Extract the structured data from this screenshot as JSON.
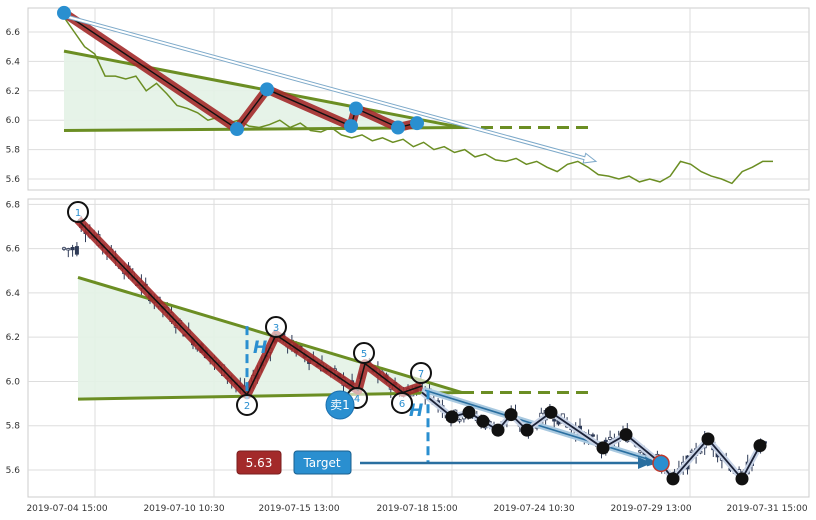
{
  "chart_data": [
    {
      "panel": "overview",
      "type": "line",
      "ylim": [
        5.55,
        6.75
      ],
      "y_ticks": [
        "6.6",
        "6.4",
        "6.2",
        "6.0",
        "5.8",
        "5.6"
      ],
      "grid": true,
      "series": [
        {
          "values": [
            6.7,
            6.6,
            6.5,
            6.45,
            6.3,
            6.3,
            6.28,
            6.3,
            6.2,
            6.25,
            6.18,
            6.1,
            6.08,
            6.05,
            6.0,
            6.02,
            5.98,
            6.0,
            5.96,
            5.95,
            5.97,
            6.0,
            5.95,
            5.98,
            5.93,
            5.92,
            5.95,
            5.9,
            5.88,
            5.9,
            5.86,
            5.88,
            5.85,
            5.87,
            5.82,
            5.85,
            5.8,
            5.82,
            5.78,
            5.8,
            5.75,
            5.77,
            5.73,
            5.72,
            5.74,
            5.7,
            5.72,
            5.68,
            5.65,
            5.7,
            5.72,
            5.68,
            5.63,
            5.62,
            5.6,
            5.62,
            5.58,
            5.6,
            5.58,
            5.62,
            5.72,
            5.7,
            5.65,
            5.62,
            5.6,
            5.57,
            5.65,
            5.68,
            5.72,
            5.72
          ]
        }
      ]
    },
    {
      "panel": "main",
      "type": "candlestick",
      "ylim": [
        5.48,
        6.82
      ],
      "y_ticks": [
        "6.8",
        "6.6",
        "6.4",
        "6.2",
        "6.0",
        "5.8",
        "5.6"
      ],
      "x_ticks": [
        "2019-07-04 15:00",
        "2019-07-10 10:30",
        "2019-07-15 13:00",
        "2019-07-18 15:00",
        "2019-07-24 10:30",
        "2019-07-29 13:00",
        "2019-07-31 15:00"
      ],
      "grid": true,
      "points": [
        {
          "label": "1",
          "price": 6.73
        },
        {
          "label": "2",
          "price": 5.94
        },
        {
          "label": "3",
          "price": 6.21
        },
        {
          "label": "4",
          "price": 5.96
        },
        {
          "label": "5",
          "price": 6.08
        },
        {
          "label": "6",
          "price": 5.95
        },
        {
          "label": "7",
          "price": 5.98
        }
      ],
      "sell_marker": "卖1",
      "breakout_price": 5.94,
      "target_price": 5.63,
      "target_price_label": "5.63",
      "target_label": "Target",
      "height_marker": "H",
      "upper_trend": [
        6.47,
        5.95
      ],
      "lower_trend": [
        5.92,
        5.95
      ],
      "projection_zigzag": [
        5.95,
        5.84,
        5.86,
        5.82,
        5.78,
        5.85,
        5.78,
        5.86,
        5.7,
        5.76,
        5.63,
        5.56,
        5.74,
        5.56,
        5.71
      ]
    }
  ],
  "colors": {
    "zigzag": "#a32a2a",
    "trend": "#6b8e23",
    "triangle_fill": "#e3f2e6",
    "accent": "#2a8fd0",
    "candle_up": "#ffffff",
    "candle_down": "#2e3a56",
    "price_badge": "#a32a2a",
    "target_badge": "#2a8fd0"
  }
}
